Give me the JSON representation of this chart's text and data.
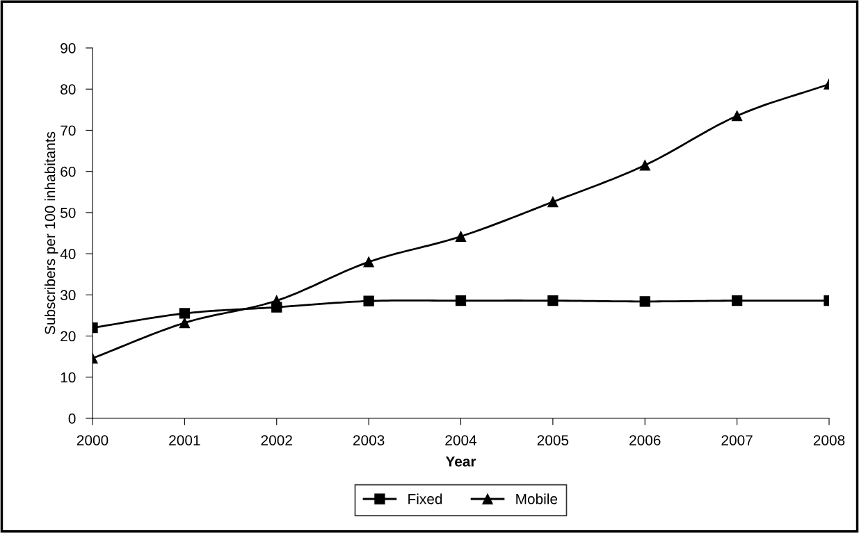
{
  "chart_data": {
    "type": "line",
    "xlabel": "Year",
    "ylabel": "Subscribers per 100 inhabitants",
    "categories": [
      "2000",
      "2001",
      "2002",
      "2003",
      "2004",
      "2005",
      "2006",
      "2007",
      "2008"
    ],
    "series": [
      {
        "name": "Fixed",
        "color": "#000000",
        "marker": "square",
        "values": [
          22,
          25.5,
          27,
          28.5,
          28.6,
          28.6,
          28.4,
          28.6,
          28.6
        ]
      },
      {
        "name": "Mobile",
        "color": "#000000",
        "marker": "triangle",
        "values": [
          14.6,
          23.2,
          28.6,
          38,
          44.2,
          52.6,
          61.5,
          73.5,
          81.2
        ]
      }
    ],
    "ylim": [
      0,
      90
    ],
    "yticks": [
      0,
      10,
      20,
      30,
      40,
      50,
      60,
      70,
      80,
      90
    ],
    "grid": false,
    "legend": "bottom",
    "line_style": "solid"
  }
}
